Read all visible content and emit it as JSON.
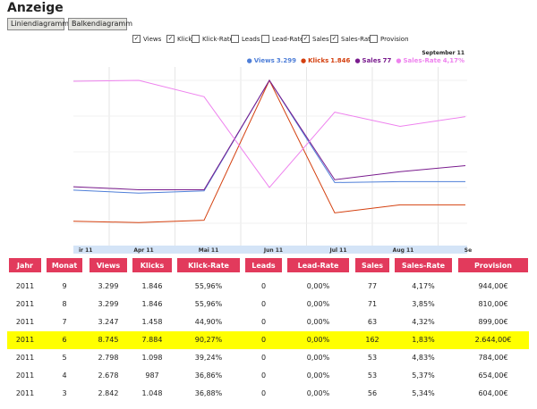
{
  "header": {
    "title": "Anzeige"
  },
  "buttons": [
    "Liniendiagramm",
    "Balkendiagramm"
  ],
  "series": [
    {
      "name": "Views",
      "checked": true,
      "color": "#4f7fd8",
      "legend_value": "3.299"
    },
    {
      "name": "Klicks",
      "checked": true,
      "color": "#d4400f",
      "legend_value": "1.846"
    },
    {
      "name": "Klick-Rate",
      "checked": false
    },
    {
      "name": "Leads",
      "checked": false
    },
    {
      "name": "Lead-Rate",
      "checked": false
    },
    {
      "name": "Sales",
      "checked": true,
      "color": "#7a1c8e",
      "legend_value": "77"
    },
    {
      "name": "Sales-Rate",
      "checked": true,
      "color": "#ee82ee",
      "legend_value": "4,17%"
    },
    {
      "name": "Provision",
      "checked": false
    }
  ],
  "chart": {
    "period": "September 11",
    "x_labels": [
      "ir 11",
      "Apr 11",
      "Mai 11",
      "Jun 11",
      "Jul 11",
      "Aug 11",
      "Se"
    ]
  },
  "table": {
    "highlight_row": 3,
    "columns": [
      "Jahr",
      "Monat",
      "Views",
      "Klicks",
      "Klick-Rate",
      "Leads",
      "Lead-Rate",
      "Sales",
      "Sales-Rate",
      "Provision"
    ],
    "rows": [
      [
        "2011",
        "9",
        "3.299",
        "1.846",
        "55,96%",
        "0",
        "0,00%",
        "77",
        "4,17%",
        "944,00€"
      ],
      [
        "2011",
        "8",
        "3.299",
        "1.846",
        "55,96%",
        "0",
        "0,00%",
        "71",
        "3,85%",
        "810,00€"
      ],
      [
        "2011",
        "7",
        "3.247",
        "1.458",
        "44,90%",
        "0",
        "0,00%",
        "63",
        "4,32%",
        "899,00€"
      ],
      [
        "2011",
        "6",
        "8.745",
        "7.884",
        "90,27%",
        "0",
        "0,00%",
        "162",
        "1,83%",
        "2.644,00€"
      ],
      [
        "2011",
        "5",
        "2.798",
        "1.098",
        "39,24%",
        "0",
        "0,00%",
        "53",
        "4,83%",
        "784,00€"
      ],
      [
        "2011",
        "4",
        "2.678",
        "987",
        "36,86%",
        "0",
        "0,00%",
        "53",
        "5,37%",
        "654,00€"
      ],
      [
        "2011",
        "3",
        "2.842",
        "1.048",
        "36,88%",
        "0",
        "0,00%",
        "56",
        "5,34%",
        "604,00€"
      ]
    ]
  }
}
